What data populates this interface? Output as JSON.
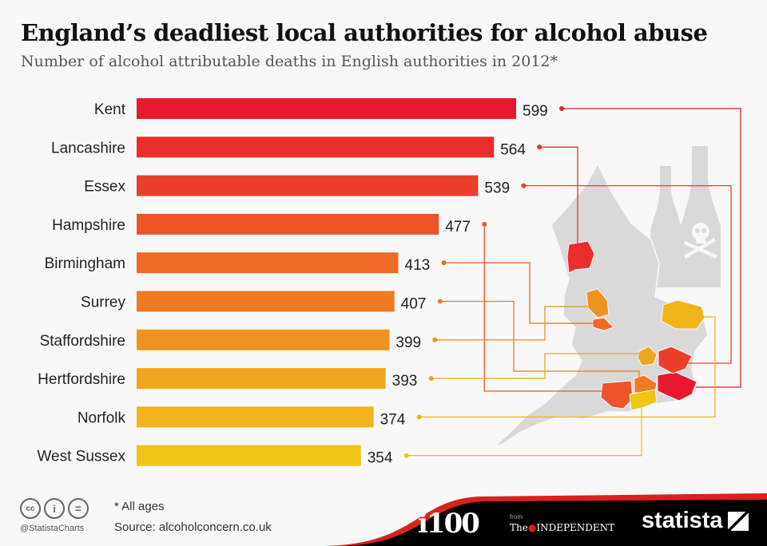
{
  "title": "England’s deadliest local authorities for alcohol abuse",
  "subtitle": "Number of alcohol attributable deaths in English authorities in 2012*",
  "chart_data": {
    "type": "bar",
    "orientation": "horizontal",
    "categories": [
      "Kent",
      "Lancashire",
      "Essex",
      "Hampshire",
      "Birmingham",
      "Surrey",
      "Staffordshire",
      "Hertfordshire",
      "Norfolk",
      "West Sussex"
    ],
    "values": [
      599,
      564,
      539,
      477,
      413,
      407,
      399,
      393,
      374,
      354
    ],
    "colors": [
      "#e8192f",
      "#eb2d2d",
      "#ec3f2b",
      "#ed5427",
      "#ee6a25",
      "#ef7b22",
      "#f09220",
      "#f0a51e",
      "#f0b41b",
      "#f0c517"
    ],
    "xlim": [
      0,
      600
    ],
    "grid": false,
    "data_labels": true
  },
  "footer": {
    "note": "* All ages",
    "source": "Source: alcoholconcern.co.uk",
    "handle": "@StatistaCharts",
    "license_icons": [
      "cc-icon",
      "attribution-icon",
      "no-derivatives-icon"
    ],
    "partner_logo": "i100",
    "partner_from": "from",
    "partner_the": "The",
    "partner_name": "INDEPENDENT",
    "brand": "statista"
  }
}
